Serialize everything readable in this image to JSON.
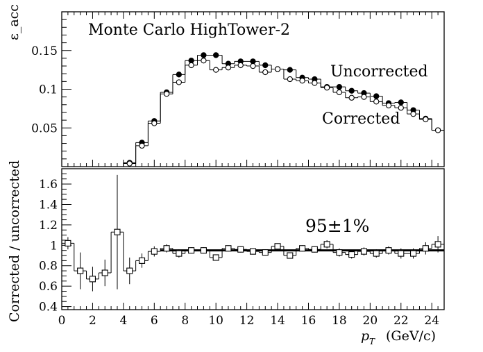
{
  "chart_data": [
    {
      "type": "line",
      "panel": "top",
      "annotations": [
        "Monte Carlo HighTower-2",
        "Uncorrected",
        "Corrected"
      ],
      "ylabel": "ε_acc",
      "xlim": [
        0,
        24.8
      ],
      "ylim": [
        0,
        0.2
      ],
      "ytick_labels": [
        "0.05",
        "0.1",
        "0.15"
      ],
      "ytick_values": [
        0.05,
        0.1,
        0.15
      ],
      "x": [
        0.4,
        1.2,
        2.0,
        2.8,
        3.6,
        4.4,
        5.2,
        6.0,
        6.8,
        7.6,
        8.4,
        9.2,
        10.0,
        10.8,
        11.6,
        12.4,
        13.2,
        14.0,
        14.8,
        15.6,
        16.4,
        17.2,
        18.0,
        18.8,
        19.6,
        20.4,
        21.2,
        22.0,
        22.8,
        23.6,
        24.4
      ],
      "series": [
        {
          "name": "Uncorrected",
          "marker": "filled-circle",
          "values": [
            0.0,
            0.0,
            0.0,
            0.0,
            0.0,
            0.005,
            0.031,
            0.059,
            0.096,
            0.119,
            0.137,
            0.144,
            0.144,
            0.133,
            0.136,
            0.136,
            0.131,
            0.126,
            0.125,
            0.115,
            0.113,
            0.103,
            0.103,
            0.098,
            0.095,
            0.091,
            0.082,
            0.083,
            0.073,
            0.062,
            0.047
          ]
        },
        {
          "name": "Corrected",
          "marker": "open-circle",
          "values": [
            0.0,
            0.0,
            0.0,
            0.0,
            0.0,
            0.004,
            0.027,
            0.056,
            0.094,
            0.109,
            0.131,
            0.137,
            0.125,
            0.128,
            0.131,
            0.13,
            0.122,
            0.126,
            0.113,
            0.111,
            0.108,
            0.102,
            0.096,
            0.089,
            0.09,
            0.084,
            0.079,
            0.076,
            0.068,
            0.061,
            0.047
          ]
        }
      ]
    },
    {
      "type": "scatter",
      "panel": "bottom",
      "annotations": [
        "95±1%"
      ],
      "ylabel": "Corrected / uncorrected",
      "xlabel_main": "p",
      "xlabel_sub": "T",
      "xlabel_unit": "(GeV/c)",
      "xlim": [
        0,
        24.8
      ],
      "ylim": [
        0.37,
        1.75
      ],
      "xtick_labels": [
        "0",
        "2",
        "4",
        "6",
        "8",
        "10",
        "12",
        "14",
        "16",
        "18",
        "20",
        "22",
        "24"
      ],
      "xtick_values": [
        0,
        2,
        4,
        6,
        8,
        10,
        12,
        14,
        16,
        18,
        20,
        22,
        24
      ],
      "ytick_labels": [
        "0.4",
        "0.6",
        "0.8",
        "1",
        "1.2",
        "1.4",
        "1.6"
      ],
      "ytick_values": [
        0.4,
        0.6,
        0.8,
        1.0,
        1.2,
        1.4,
        1.6
      ],
      "fit_value": 0.95,
      "fit_range": [
        6.4,
        24.8
      ],
      "x": [
        0.4,
        1.2,
        2.0,
        2.8,
        3.6,
        4.4,
        5.2,
        6.0,
        6.8,
        7.6,
        8.4,
        9.2,
        10.0,
        10.8,
        11.6,
        12.4,
        13.2,
        14.0,
        14.8,
        15.6,
        16.4,
        17.2,
        18.0,
        18.8,
        19.6,
        20.4,
        21.2,
        22.0,
        22.8,
        23.6,
        24.4
      ],
      "series": [
        {
          "marker": "open-square",
          "values": [
            1.02,
            0.75,
            0.67,
            0.73,
            1.13,
            0.75,
            0.85,
            0.94,
            0.97,
            0.92,
            0.95,
            0.95,
            0.88,
            0.97,
            0.96,
            0.94,
            0.93,
            0.99,
            0.9,
            0.97,
            0.96,
            1.01,
            0.93,
            0.91,
            0.94,
            0.92,
            0.95,
            0.92,
            0.92,
            0.97,
            1.01
          ],
          "errors": [
            0.06,
            0.18,
            0.12,
            0.13,
            0.56,
            0.13,
            0.07,
            0.05,
            0.04,
            0.04,
            0.03,
            0.03,
            0.03,
            0.03,
            0.03,
            0.03,
            0.03,
            0.03,
            0.03,
            0.03,
            0.03,
            0.04,
            0.04,
            0.04,
            0.04,
            0.04,
            0.04,
            0.05,
            0.05,
            0.06,
            0.08
          ]
        }
      ]
    }
  ]
}
